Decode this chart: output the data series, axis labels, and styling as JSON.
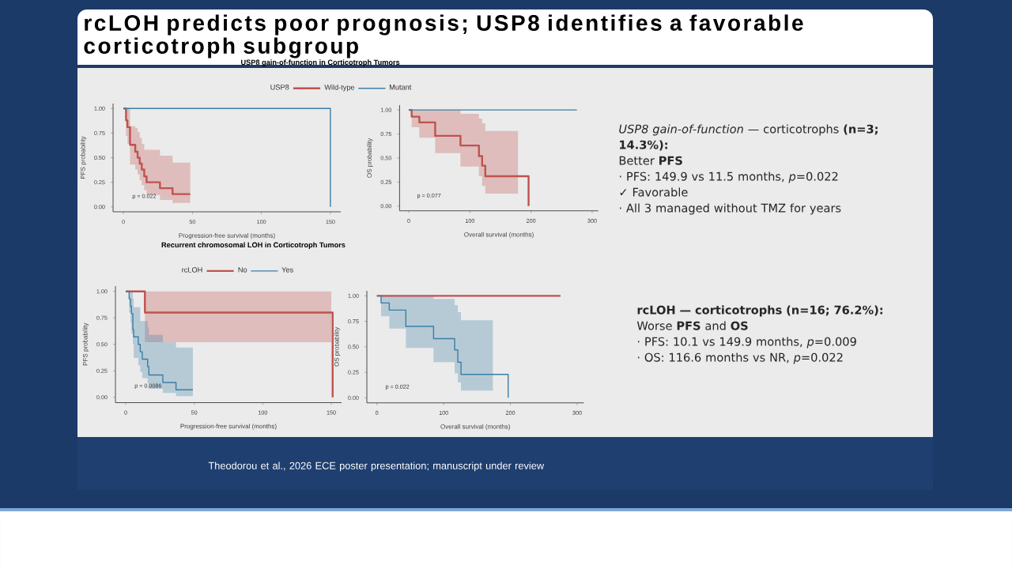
{
  "chart_data": [
    {
      "type": "other",
      "title": "rcLOH predicts poor prognosis; USP8 identifies a favorable corticotroph subgroup"
    },
    {
      "type": "step",
      "title": "USP8 gain-of-function in Corticotroph Tumors",
      "legend_title": "USP8",
      "legend": "top",
      "xlabel": "Progression-free survival (months)",
      "ylabel": "PFS probability",
      "xlim": [
        -7.5,
        157.5
      ],
      "ylim": [
        -0.05,
        1.05
      ],
      "xticks": [
        0,
        50,
        100,
        150
      ],
      "yticks": [
        {
          "value": 0,
          "label": "0.00"
        },
        {
          "value": 0.25,
          "label": "0.25"
        },
        {
          "value": 0.5,
          "label": "0.50"
        },
        {
          "value": 0.75,
          "label": "0.75"
        },
        {
          "value": 1,
          "label": "1.00"
        }
      ],
      "annotations": [
        "p = 0.022"
      ],
      "series": [
        {
          "name": "Wild-type",
          "color": "#c0524e",
          "x": [
            0,
            1.9,
            2.9,
            4.8,
            8.6,
            10.3,
            11.8,
            13.3,
            15.1,
            16.8,
            26.5,
            35.6,
            48.4
          ],
          "values": [
            1,
            0.88,
            0.81,
            0.63,
            0.56,
            0.5,
            0.44,
            0.38,
            0.31,
            0.25,
            0.19,
            0.13,
            0.13
          ],
          "lower": [
            null,
            0.72,
            0.64,
            0.43,
            0.38,
            0.33,
            0.27,
            0.22,
            0.17,
            0.12,
            0.07,
            0.04,
            0.04
          ],
          "upper": [
            null,
            1,
            1,
            0.82,
            0.8,
            0.76,
            0.7,
            0.64,
            0.58,
            0.58,
            0.52,
            0.45,
            0.45
          ]
        },
        {
          "name": "Mutant",
          "color": "#3a7fa6",
          "x": [
            0,
            150
          ],
          "values": [
            1,
            0
          ]
        }
      ]
    },
    {
      "type": "step",
      "xlabel": "Overall survival (months)",
      "ylabel": "OS probability",
      "xlim": [
        -15,
        310
      ],
      "ylim": [
        -0.05,
        1.05
      ],
      "xticks": [
        0,
        100,
        200,
        300
      ],
      "yticks": [
        {
          "value": 0,
          "label": "0.00"
        },
        {
          "value": 0.25,
          "label": "0.25"
        },
        {
          "value": 0.5,
          "label": "0.50"
        },
        {
          "value": 0.75,
          "label": "0.75"
        },
        {
          "value": 1,
          "label": "1.00"
        }
      ],
      "annotations": [
        "p = 0.077"
      ],
      "series": [
        {
          "color": "#c0524e",
          "x": [
            0,
            4.7,
            17.3,
            43.2,
            84.6,
            114.8,
            120,
            125.2,
            178.7,
            196
          ],
          "values": [
            1,
            0.93,
            0.87,
            0.73,
            0.63,
            0.52,
            0.42,
            0.31,
            0.31,
            0
          ],
          "lower": [
            null,
            0.82,
            0.71,
            0.55,
            0.41,
            0.31,
            0.21,
            0.13,
            0.13,
            null
          ],
          "upper": [
            null,
            1,
            1,
            1,
            0.96,
            0.91,
            0.86,
            0.78,
            0.78,
            null
          ]
        },
        {
          "color": "#3a7fa6",
          "x": [
            0,
            275
          ],
          "values": [
            1,
            1
          ]
        }
      ]
    },
    {
      "type": "other",
      "title": "*USP8 gain-of-function* — corticotrophs **(n=3; 14.3%):**",
      "subtitle": "Better **PFS**",
      "annotations": [
        "· PFS: 149.9 vs 11.5 months,  *p*=0.022",
        "✓ Favorable",
        "· All 3 managed without TMZ for years"
      ]
    },
    {
      "type": "step",
      "title": "Recurrent chromosomal LOH in Corticotroph Tumors",
      "legend_title": "rcLOH",
      "legend": "top",
      "xlabel": "Progression-free survival (months)",
      "ylabel": "PFS probability",
      "xlim": [
        -7.5,
        157.5
      ],
      "ylim": [
        -0.05,
        1.05
      ],
      "xticks": [
        0,
        50,
        100,
        150
      ],
      "yticks": [
        {
          "value": 0,
          "label": "0.00"
        },
        {
          "value": 0.25,
          "label": "0.25"
        },
        {
          "value": 0.5,
          "label": "0.50"
        },
        {
          "value": 0.75,
          "label": "0.75"
        },
        {
          "value": 1,
          "label": "1.00"
        }
      ],
      "annotations": [
        "p = 0.0086"
      ],
      "series": [
        {
          "name": "No",
          "color": "#c0524e",
          "x": [
            0,
            14,
            150,
            151
          ],
          "values": [
            1,
            0.8,
            0.8,
            0
          ],
          "lower": [
            null,
            0.52,
            0.52,
            null
          ],
          "upper": [
            null,
            1,
            1,
            null
          ]
        },
        {
          "name": "Yes",
          "color": "#3a7fa6",
          "x": [
            0,
            2.5,
            3.5,
            4.2,
            5.2,
            5.8,
            9.2,
            10.6,
            12.1,
            16,
            16.9,
            27.1,
            36.7,
            49
          ],
          "values": [
            1,
            0.93,
            0.86,
            0.79,
            0.64,
            0.57,
            0.5,
            0.43,
            0.36,
            0.29,
            0.21,
            0.14,
            0.07,
            0.07
          ],
          "lower": [
            null,
            0.8,
            0.7,
            0.6,
            0.5,
            0.37,
            0.3,
            0.24,
            0.18,
            0.13,
            0.08,
            0.04,
            0.01,
            0.01
          ],
          "upper": [
            null,
            1,
            1,
            1,
            0.93,
            0.85,
            0.85,
            0.72,
            0.72,
            0.66,
            0.59,
            0.52,
            0.47,
            0.47
          ]
        }
      ]
    },
    {
      "type": "step",
      "xlabel": "Overall survival (months)",
      "ylabel": "OS probability",
      "xlim": [
        -15,
        310
      ],
      "ylim": [
        -0.05,
        1.05
      ],
      "xticks": [
        0,
        100,
        200,
        300
      ],
      "yticks": [
        {
          "value": 0,
          "label": "0.00"
        },
        {
          "value": 0.25,
          "label": "0.25"
        },
        {
          "value": 0.5,
          "label": "0.50"
        },
        {
          "value": 0.75,
          "label": "0.75"
        },
        {
          "value": 1,
          "label": "1.00"
        }
      ],
      "annotations": [
        "p = 0.022"
      ],
      "series": [
        {
          "color": "#c0524e",
          "x": [
            0,
            275
          ],
          "values": [
            1,
            1
          ]
        },
        {
          "color": "#3a7fa6",
          "x": [
            0,
            6.3,
            18.6,
            43.4,
            84.9,
            116.5,
            121.2,
            126,
            173.7,
            196.6
          ],
          "values": [
            1,
            0.93,
            0.86,
            0.7,
            0.58,
            0.47,
            0.35,
            0.23,
            0.23,
            0
          ],
          "lower": [
            null,
            0.8,
            0.68,
            0.49,
            0.35,
            0.24,
            0.15,
            0.07,
            0.07,
            null
          ],
          "upper": [
            null,
            1,
            1,
            1,
            0.97,
            0.91,
            0.84,
            0.76,
            0.76,
            null
          ]
        }
      ]
    },
    {
      "type": "other",
      "title": "**rcLOH — corticotrophs (n=16; 76.2%):**",
      "subtitle": "Worse **PFS** and **OS**",
      "annotations": [
        "· PFS: 10.1 vs 149.9 months,  *p*=0.009",
        "· OS: 116.6 months vs NR,  *p*=0.022"
      ]
    },
    {
      "type": "other",
      "annotations": [
        "Theodorou et al., 2026 ECE poster presentation; manuscript under review"
      ]
    }
  ]
}
